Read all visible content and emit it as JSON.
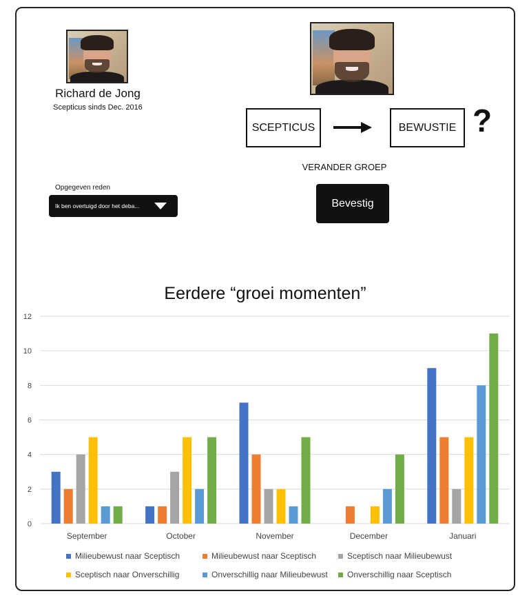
{
  "person": {
    "name": "Richard de Jong",
    "since": "Scepticus sinds Dec. 2016"
  },
  "group_change": {
    "from": "SCEPTICUS",
    "to": "BEWUSTIE",
    "question_mark": "?",
    "label": "VERANDER GROEP",
    "confirm_label": "Bevestig"
  },
  "reason": {
    "label": "Opgegeven reden",
    "selected": "Ik ben overtuigd door het deba..."
  },
  "chart_title": "Eerdere “groei momenten”",
  "chart_data": {
    "type": "bar",
    "categories": [
      "September",
      "October",
      "November",
      "December",
      "Januari"
    ],
    "ylim": [
      0,
      12
    ],
    "yticks": [
      0,
      2,
      4,
      6,
      8,
      10,
      12
    ],
    "grid": true,
    "legend_position": "bottom",
    "series": [
      {
        "name": "Milieubewust naar Sceptisch",
        "color": "#4472C4",
        "values": [
          3,
          1,
          7,
          0,
          9
        ]
      },
      {
        "name": "Milieubewust naar Sceptisch",
        "color": "#ED7D31",
        "values": [
          2,
          1,
          4,
          1,
          5
        ]
      },
      {
        "name": "Sceptisch naar Milieubewust",
        "color": "#A5A5A5",
        "values": [
          4,
          3,
          2,
          0,
          2
        ]
      },
      {
        "name": "Sceptisch naar Onverschillig",
        "color": "#FFC000",
        "values": [
          5,
          5,
          2,
          1,
          5
        ]
      },
      {
        "name": "Onverschillig naar Milieubewust",
        "color": "#5B9BD5",
        "values": [
          1,
          2,
          1,
          2,
          8
        ]
      },
      {
        "name": "Onverschillig naar Sceptisch",
        "color": "#70AD47",
        "values": [
          1,
          5,
          5,
          4,
          11
        ]
      }
    ]
  }
}
